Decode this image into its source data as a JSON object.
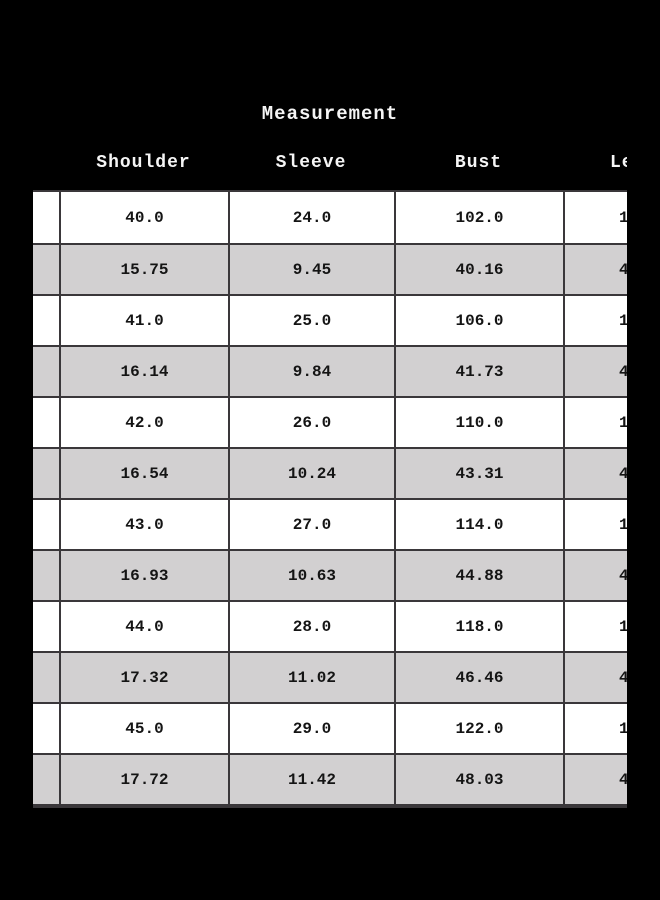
{
  "page": {
    "background": "#000000"
  },
  "title": "Measurement",
  "table": {
    "headers": {
      "size_partial": "",
      "shoulder": "Shoulder",
      "sleeve": "Sleeve",
      "bust": "Bust",
      "length_partial": "Le"
    },
    "colors": {
      "row_white": "#ffffff",
      "row_gray": "#d2d0d1",
      "border": "#3a373a",
      "header_text": "#f5f5f5",
      "cell_text": "#141414"
    },
    "rows": [
      {
        "shoulder": "40.0",
        "sleeve": "24.0",
        "bust": "102.0",
        "length_partial": "1",
        "shade": "white"
      },
      {
        "shoulder": "15.75",
        "sleeve": "9.45",
        "bust": "40.16",
        "length_partial": "4",
        "shade": "gray"
      },
      {
        "shoulder": "41.0",
        "sleeve": "25.0",
        "bust": "106.0",
        "length_partial": "1",
        "shade": "white"
      },
      {
        "shoulder": "16.14",
        "sleeve": "9.84",
        "bust": "41.73",
        "length_partial": "4",
        "shade": "gray"
      },
      {
        "shoulder": "42.0",
        "sleeve": "26.0",
        "bust": "110.0",
        "length_partial": "1",
        "shade": "white"
      },
      {
        "shoulder": "16.54",
        "sleeve": "10.24",
        "bust": "43.31",
        "length_partial": "4",
        "shade": "gray"
      },
      {
        "shoulder": "43.0",
        "sleeve": "27.0",
        "bust": "114.0",
        "length_partial": "1",
        "shade": "white"
      },
      {
        "shoulder": "16.93",
        "sleeve": "10.63",
        "bust": "44.88",
        "length_partial": "4",
        "shade": "gray"
      },
      {
        "shoulder": "44.0",
        "sleeve": "28.0",
        "bust": "118.0",
        "length_partial": "1",
        "shade": "white"
      },
      {
        "shoulder": "17.32",
        "sleeve": "11.02",
        "bust": "46.46",
        "length_partial": "4",
        "shade": "gray"
      },
      {
        "shoulder": "45.0",
        "sleeve": "29.0",
        "bust": "122.0",
        "length_partial": "1",
        "shade": "white"
      },
      {
        "shoulder": "17.72",
        "sleeve": "11.42",
        "bust": "48.03",
        "length_partial": "4",
        "shade": "gray"
      }
    ]
  }
}
